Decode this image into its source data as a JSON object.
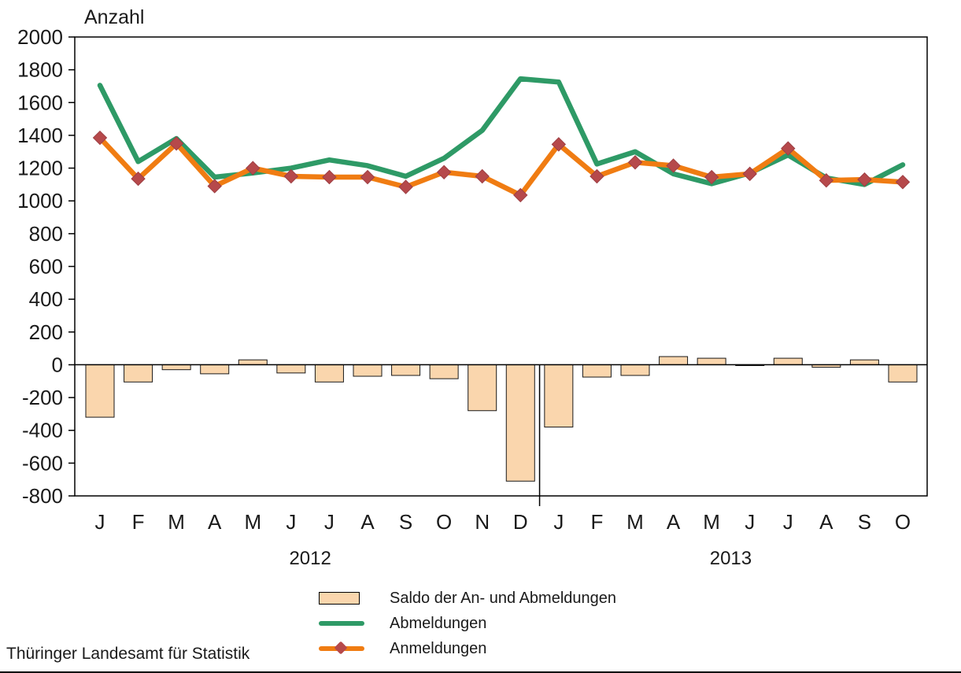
{
  "title": "Anzahl",
  "footer": "Thüringer Landesamt für Statistik",
  "legend": {
    "items": [
      {
        "label": "Saldo der An- und Abmeldungen",
        "swatch": "bar"
      },
      {
        "label": "Abmeldungen",
        "swatch": "line-green"
      },
      {
        "label": "Anmeldungen",
        "swatch": "line-orange-diamond"
      }
    ]
  },
  "colors": {
    "bar_fill": "#FAD6AD",
    "bar_stroke": "#1a1a1a",
    "abmeldungen_line": "#2E9A66",
    "anmeldungen_line": "#F07C12",
    "anmeldungen_marker": "#B6494B",
    "axis": "#000000",
    "text": "#1a1a1a"
  },
  "chart_data": {
    "type": "bar",
    "subtype": "combined bar + two lines",
    "title": "Anzahl",
    "xlabel": "",
    "ylabel": "Anzahl",
    "ylim": [
      -800,
      2000
    ],
    "ytick_step": 200,
    "grid": false,
    "legend_position": "bottom",
    "categories": [
      "J",
      "F",
      "M",
      "A",
      "M",
      "J",
      "J",
      "A",
      "S",
      "O",
      "N",
      "D",
      "J",
      "F",
      "M",
      "A",
      "M",
      "J",
      "J",
      "A",
      "S",
      "O"
    ],
    "year_groups": [
      {
        "label": "2012",
        "months": 12
      },
      {
        "label": "2013",
        "months": 10
      }
    ],
    "series": [
      {
        "name": "Saldo der An- und Abmeldungen",
        "type": "bar",
        "values": [
          -320,
          -105,
          -30,
          -55,
          30,
          -50,
          -105,
          -70,
          -65,
          -85,
          -280,
          -710,
          -380,
          -75,
          -65,
          50,
          40,
          -5,
          40,
          -15,
          30,
          -105
        ]
      },
      {
        "name": "Abmeldungen",
        "type": "line",
        "values": [
          1705,
          1240,
          1380,
          1145,
          1170,
          1200,
          1250,
          1215,
          1150,
          1260,
          1430,
          1745,
          1725,
          1225,
          1300,
          1165,
          1105,
          1170,
          1280,
          1140,
          1100,
          1220
        ]
      },
      {
        "name": "Anmeldungen",
        "type": "line",
        "marker": "diamond",
        "values": [
          1385,
          1135,
          1350,
          1090,
          1200,
          1150,
          1145,
          1145,
          1085,
          1175,
          1150,
          1035,
          1345,
          1150,
          1235,
          1215,
          1145,
          1165,
          1320,
          1125,
          1130,
          1115
        ]
      }
    ]
  }
}
